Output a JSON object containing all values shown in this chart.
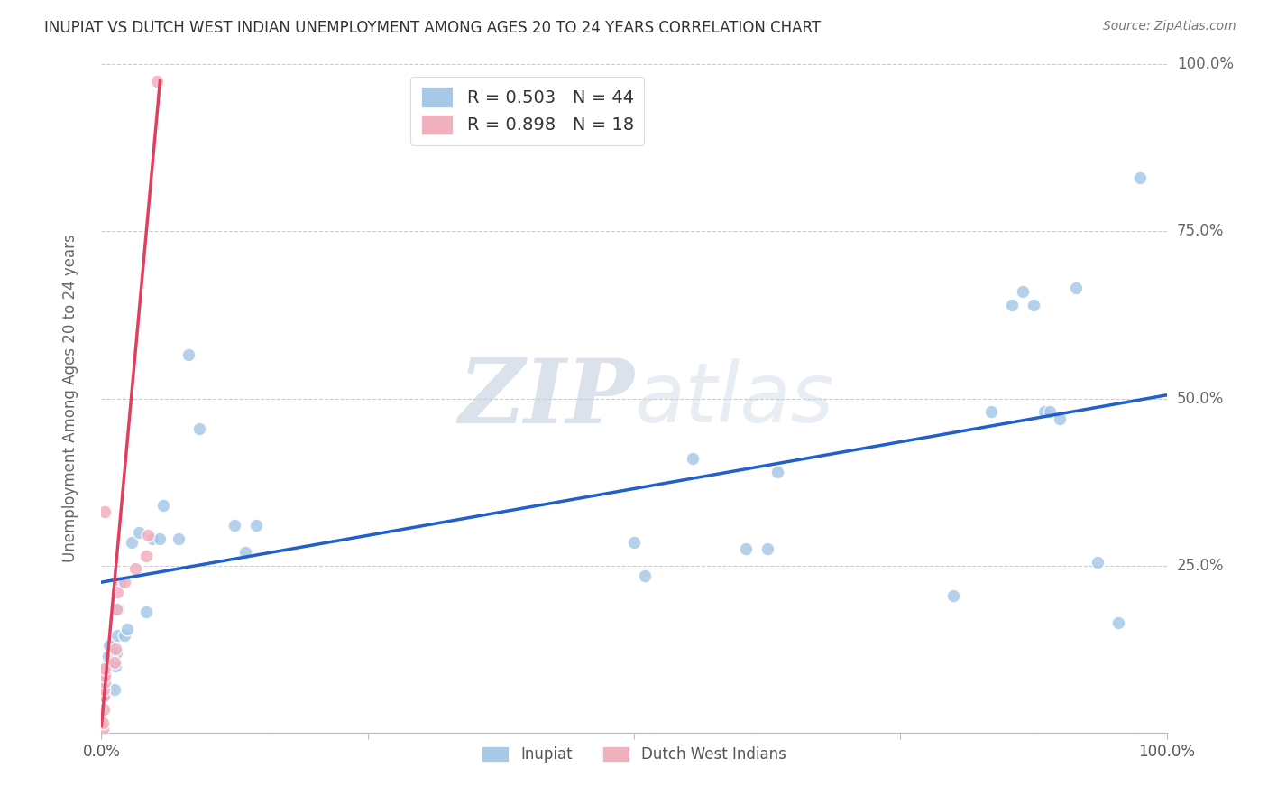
{
  "title": "INUPIAT VS DUTCH WEST INDIAN UNEMPLOYMENT AMONG AGES 20 TO 24 YEARS CORRELATION CHART",
  "source": "Source: ZipAtlas.com",
  "ylabel": "Unemployment Among Ages 20 to 24 years",
  "xlim": [
    0,
    1
  ],
  "ylim": [
    0,
    1
  ],
  "inupiat_color": "#a8c8e8",
  "dutch_color": "#f0b0be",
  "line_blue": "#2060cc",
  "line_pink": "#e04060",
  "legend_R1": "R = 0.503",
  "legend_N1": "N = 44",
  "legend_R2": "R = 0.898",
  "legend_N2": "N = 18",
  "inupiat_x": [
    0.002,
    0.003,
    0.004,
    0.005,
    0.006,
    0.007,
    0.012,
    0.013,
    0.014,
    0.015,
    0.016,
    0.017,
    0.022,
    0.024,
    0.028,
    0.035,
    0.042,
    0.048,
    0.055,
    0.058,
    0.072,
    0.082,
    0.092,
    0.125,
    0.135,
    0.145,
    0.5,
    0.51,
    0.555,
    0.605,
    0.625,
    0.635,
    0.8,
    0.835,
    0.855,
    0.865,
    0.875,
    0.885,
    0.89,
    0.9,
    0.915,
    0.935,
    0.955,
    0.975
  ],
  "inupiat_y": [
    0.055,
    0.065,
    0.09,
    0.1,
    0.115,
    0.13,
    0.065,
    0.1,
    0.12,
    0.145,
    0.185,
    0.225,
    0.145,
    0.155,
    0.285,
    0.3,
    0.18,
    0.29,
    0.29,
    0.34,
    0.29,
    0.565,
    0.455,
    0.31,
    0.27,
    0.31,
    0.285,
    0.235,
    0.41,
    0.275,
    0.275,
    0.39,
    0.205,
    0.48,
    0.64,
    0.66,
    0.64,
    0.48,
    0.48,
    0.47,
    0.665,
    0.255,
    0.165,
    0.83
  ],
  "dutch_x": [
    0.001,
    0.001,
    0.002,
    0.002,
    0.002,
    0.003,
    0.003,
    0.003,
    0.003,
    0.012,
    0.013,
    0.014,
    0.015,
    0.022,
    0.032,
    0.042,
    0.044,
    0.052
  ],
  "dutch_y": [
    0.005,
    0.015,
    0.035,
    0.055,
    0.065,
    0.075,
    0.085,
    0.095,
    0.33,
    0.105,
    0.125,
    0.185,
    0.21,
    0.225,
    0.245,
    0.265,
    0.295,
    0.975
  ],
  "blue_line_x": [
    0.0,
    1.0
  ],
  "blue_line_y": [
    0.225,
    0.505
  ],
  "pink_line_x": [
    0.0,
    0.055
  ],
  "pink_line_y": [
    0.01,
    0.975
  ],
  "marker_size": 110,
  "background_color": "#ffffff",
  "grid_color": "#cccccc",
  "zip_color": "#c0cde0",
  "atlas_color": "#ccd5e5"
}
